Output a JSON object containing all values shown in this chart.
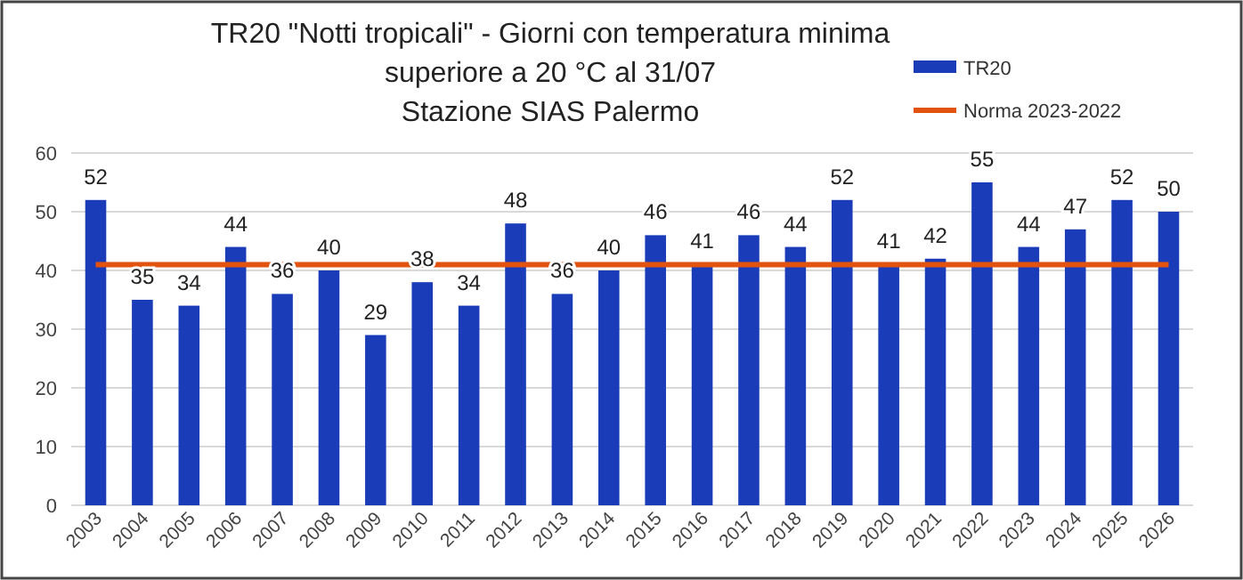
{
  "chart_data": {
    "type": "bar",
    "title": "TR20 \"Notti tropicali\" - Giorni con temperatura minima\nsuperiore a 20 °C al 31/07\nStazione SIAS Palermo",
    "categories": [
      "2003",
      "2004",
      "2005",
      "2006",
      "2007",
      "2008",
      "2009",
      "2010",
      "2011",
      "2012",
      "2013",
      "2014",
      "2015",
      "2016",
      "2017",
      "2018",
      "2019",
      "2020",
      "2021",
      "2022",
      "2023",
      "2024",
      "2025",
      "2026"
    ],
    "series": [
      {
        "name": "TR20",
        "color": "#1a3cb8",
        "values": [
          52,
          35,
          34,
          44,
          36,
          40,
          29,
          38,
          34,
          48,
          36,
          40,
          46,
          41,
          46,
          44,
          52,
          41,
          42,
          55,
          44,
          47,
          52,
          50
        ],
        "value_labels": [
          "52",
          "35",
          "34",
          "44",
          "36",
          "40",
          "29",
          "38",
          "34",
          "48",
          "36",
          "40",
          "46",
          "41",
          "46",
          "44",
          "52",
          "41",
          "42",
          "55",
          "44",
          "47",
          "52",
          "50"
        ]
      },
      {
        "name": "Norma 2023-2022",
        "type": "line",
        "color": "#e2530f",
        "values": [
          41,
          41,
          41,
          41,
          41,
          41,
          41,
          41,
          41,
          41,
          41,
          41,
          41,
          41,
          41,
          41,
          41,
          41,
          41,
          41,
          41,
          41,
          41,
          41
        ]
      }
    ],
    "ylim": [
      0,
      60
    ],
    "yticks": [
      0,
      10,
      20,
      30,
      40,
      50,
      60
    ],
    "grid": "y",
    "legend": "top right"
  }
}
